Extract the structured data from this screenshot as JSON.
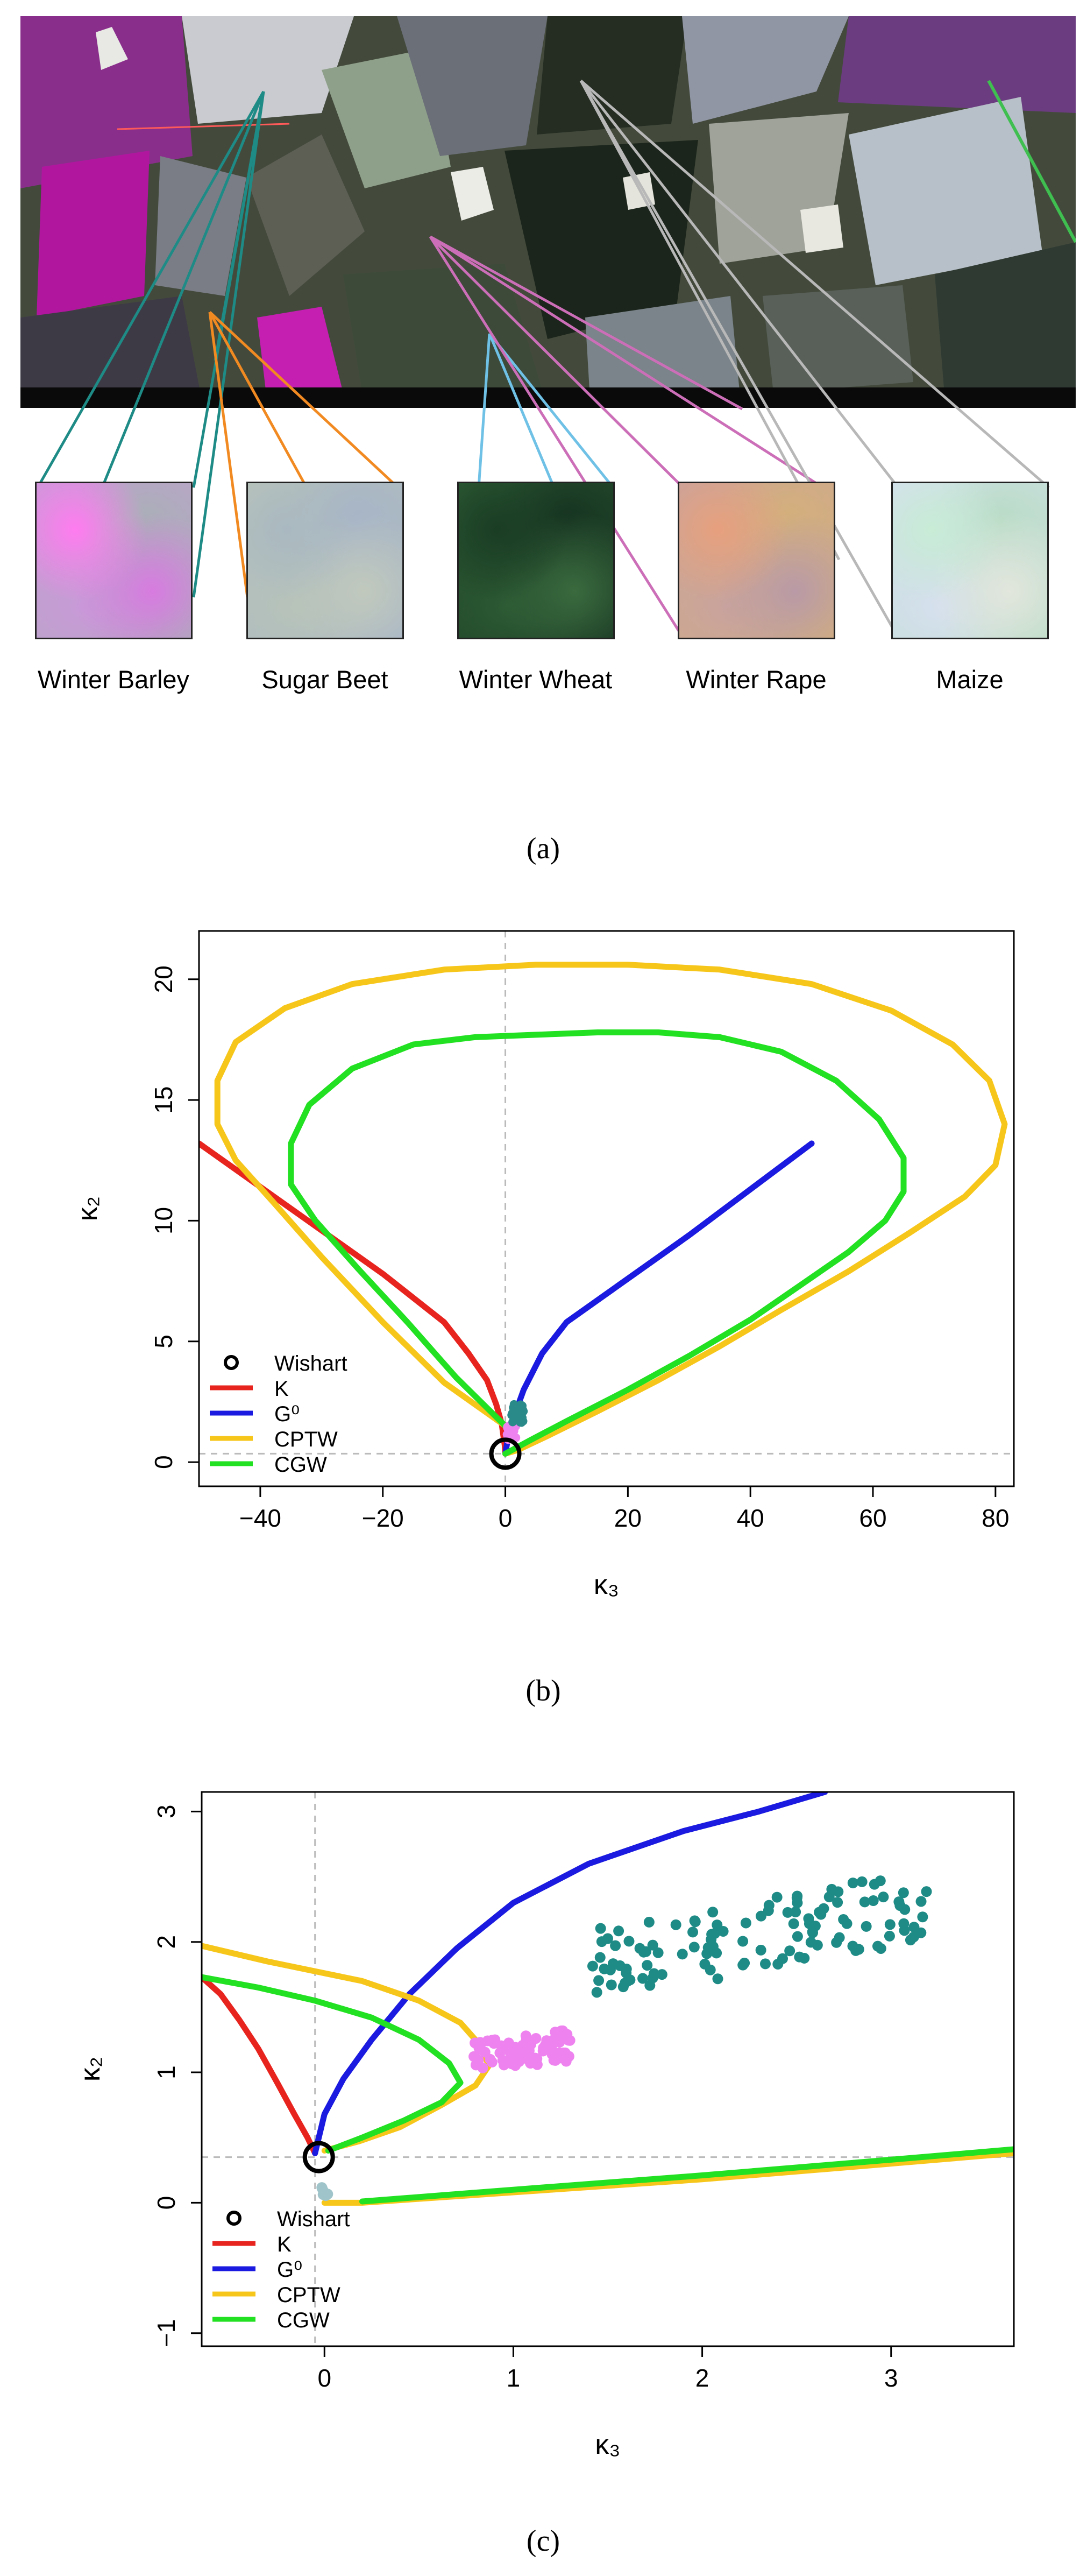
{
  "panel_a": {
    "caption": "(a)",
    "crops": [
      {
        "name": "Winter Barley",
        "color": "#1e8b86",
        "patch_colors": [
          "#ff7cf0",
          "#c99ad8",
          "#a9b0b7",
          "#d77be0"
        ]
      },
      {
        "name": "Sugar Beet",
        "color": "#f28a22",
        "patch_colors": [
          "#aab9c1",
          "#b7c3b9",
          "#a6b4c8",
          "#c1c9bd"
        ]
      },
      {
        "name": "Winter Wheat",
        "color": "#6fc1e6",
        "patch_colors": [
          "#1a3d24",
          "#2c5a33",
          "#163321",
          "#3a6a3e"
        ]
      },
      {
        "name": "Winter Rape",
        "color": "#cc6fb8",
        "patch_colors": [
          "#e7a07e",
          "#c9a39d",
          "#d4b07a",
          "#b99aa6"
        ]
      },
      {
        "name": "Maize",
        "color": "#b8b8b8",
        "patch_colors": [
          "#c8ecd6",
          "#d6e0ef",
          "#b9dcc6",
          "#e2e6dc"
        ]
      }
    ]
  },
  "chart_data": [
    {
      "type": "line",
      "caption": "(b)",
      "xlabel": "κ₃",
      "ylabel": "κ₂",
      "xlim": [
        -50,
        83
      ],
      "ylim": [
        -1,
        22
      ],
      "xticks": [
        -40,
        -20,
        0,
        20,
        40,
        60,
        80
      ],
      "yticks": [
        0,
        5,
        10,
        15,
        20
      ],
      "reference_lines": {
        "x": 0,
        "y": 0.35,
        "style": "dashed",
        "color": "#bbbbbb"
      },
      "legend_position": "bottom-left",
      "legend": [
        {
          "name": "Wishart",
          "color": "#000000",
          "kind": "circle"
        },
        {
          "name": "K",
          "color": "#e8241f",
          "kind": "line"
        },
        {
          "name": "G⁰",
          "color": "#1a1ae0",
          "kind": "line"
        },
        {
          "name": "CPTW",
          "color": "#f7c61a",
          "kind": "line"
        },
        {
          "name": "CGW",
          "color": "#22e022",
          "kind": "line"
        }
      ],
      "wishart_point": [
        0,
        0.35
      ],
      "series": [
        {
          "name": "K",
          "color": "#e8241f",
          "points": [
            [
              -50,
              13.2
            ],
            [
              -40,
              11.4
            ],
            [
              -30,
              9.6
            ],
            [
              -20,
              7.8
            ],
            [
              -10,
              5.8
            ],
            [
              -6,
              4.5
            ],
            [
              -3,
              3.4
            ],
            [
              -1.5,
              2.4
            ],
            [
              -0.6,
              1.6
            ],
            [
              -0.1,
              0.7
            ],
            [
              0,
              0.35
            ]
          ]
        },
        {
          "name": "G⁰",
          "color": "#1a1ae0",
          "points": [
            [
              0,
              0.35
            ],
            [
              0.3,
              0.8
            ],
            [
              1,
              1.6
            ],
            [
              3,
              3
            ],
            [
              6,
              4.5
            ],
            [
              10,
              5.8
            ],
            [
              20,
              7.6
            ],
            [
              30,
              9.4
            ],
            [
              40,
              11.3
            ],
            [
              50,
              13.2
            ]
          ]
        },
        {
          "name": "CPTW",
          "color": "#f7c61a",
          "points": [
            [
              0,
              1.5
            ],
            [
              -10,
              3.3
            ],
            [
              -20,
              5.8
            ],
            [
              -30,
              8.5
            ],
            [
              -38,
              10.8
            ],
            [
              -44,
              12.5
            ],
            [
              -47,
              14
            ],
            [
              -47,
              15.8
            ],
            [
              -44,
              17.4
            ],
            [
              -36,
              18.8
            ],
            [
              -25,
              19.8
            ],
            [
              -10,
              20.4
            ],
            [
              5,
              20.6
            ],
            [
              20,
              20.6
            ],
            [
              35,
              20.4
            ],
            [
              50,
              19.8
            ],
            [
              63,
              18.7
            ],
            [
              73,
              17.3
            ],
            [
              79,
              15.8
            ],
            [
              81.5,
              14
            ],
            [
              80,
              12.3
            ],
            [
              75,
              11
            ],
            [
              66,
              9.5
            ],
            [
              56,
              7.9
            ],
            [
              45,
              6.3
            ],
            [
              35,
              4.8
            ],
            [
              25,
              3.4
            ],
            [
              15,
              2.1
            ],
            [
              7,
              1.1
            ],
            [
              2,
              0.5
            ],
            [
              0,
              0.35
            ]
          ]
        },
        {
          "name": "CGW",
          "color": "#22e022",
          "points": [
            [
              0,
              1.5
            ],
            [
              -8,
              3.5
            ],
            [
              -16,
              5.8
            ],
            [
              -24,
              8
            ],
            [
              -31,
              10
            ],
            [
              -35,
              11.5
            ],
            [
              -35,
              13.2
            ],
            [
              -32,
              14.8
            ],
            [
              -25,
              16.3
            ],
            [
              -15,
              17.3
            ],
            [
              -5,
              17.6
            ],
            [
              5,
              17.7
            ],
            [
              15,
              17.8
            ],
            [
              25,
              17.8
            ],
            [
              35,
              17.6
            ],
            [
              45,
              17
            ],
            [
              54,
              15.8
            ],
            [
              61,
              14.2
            ],
            [
              65,
              12.6
            ],
            [
              65,
              11.2
            ],
            [
              62,
              10
            ],
            [
              56,
              8.7
            ],
            [
              48,
              7.3
            ],
            [
              40,
              5.9
            ],
            [
              30,
              4.4
            ],
            [
              20,
              3
            ],
            [
              10,
              1.7
            ],
            [
              4,
              0.9
            ],
            [
              0,
              0.35
            ]
          ]
        }
      ],
      "scatter": [
        {
          "color": "#ee82ee",
          "center": [
            1,
            1.2
          ],
          "spread": [
            0.8,
            0.3
          ],
          "count": 30
        },
        {
          "color": "#2a8a8a",
          "center": [
            2,
            2
          ],
          "spread": [
            1,
            0.4
          ],
          "count": 30
        }
      ]
    },
    {
      "type": "line",
      "caption": "(c)",
      "xlabel": "κ₃",
      "ylabel": "κ₂",
      "xlim": [
        -0.65,
        3.65
      ],
      "ylim": [
        -1.1,
        3.15
      ],
      "xticks": [
        0,
        1,
        2,
        3
      ],
      "yticks": [
        -1,
        0,
        1,
        2,
        3
      ],
      "reference_lines": {
        "x": -0.05,
        "y": 0.35,
        "style": "dashed",
        "color": "#bbbbbb"
      },
      "legend_position": "bottom-left",
      "legend": [
        {
          "name": "Wishart",
          "color": "#000000",
          "kind": "circle"
        },
        {
          "name": "K",
          "color": "#e8241f",
          "kind": "line"
        },
        {
          "name": "G⁰",
          "color": "#1a1ae0",
          "kind": "line"
        },
        {
          "name": "CPTW",
          "color": "#f7c61a",
          "kind": "line"
        },
        {
          "name": "CGW",
          "color": "#22e022",
          "kind": "line"
        }
      ],
      "wishart_point": [
        -0.03,
        0.35
      ],
      "series": [
        {
          "name": "K",
          "color": "#e8241f",
          "points": [
            [
              -0.65,
              1.73
            ],
            [
              -0.55,
              1.6
            ],
            [
              -0.45,
              1.4
            ],
            [
              -0.35,
              1.18
            ],
            [
              -0.25,
              0.92
            ],
            [
              -0.16,
              0.68
            ],
            [
              -0.09,
              0.5
            ],
            [
              -0.05,
              0.38
            ]
          ]
        },
        {
          "name": "G⁰",
          "color": "#1a1ae0",
          "points": [
            [
              -0.05,
              0.38
            ],
            [
              0,
              0.68
            ],
            [
              0.1,
              0.95
            ],
            [
              0.25,
              1.25
            ],
            [
              0.45,
              1.6
            ],
            [
              0.7,
              1.95
            ],
            [
              1,
              2.3
            ],
            [
              1.4,
              2.6
            ],
            [
              1.9,
              2.85
            ],
            [
              2.3,
              3
            ],
            [
              2.65,
              3.15
            ]
          ]
        },
        {
          "name": "CPTW",
          "color": "#f7c61a",
          "points": [
            [
              -0.65,
              1.97
            ],
            [
              -0.3,
              1.85
            ],
            [
              0.2,
              1.7
            ],
            [
              0.5,
              1.55
            ],
            [
              0.72,
              1.38
            ],
            [
              0.83,
              1.2
            ],
            [
              0.87,
              1.05
            ],
            [
              0.8,
              0.9
            ],
            [
              0.62,
              0.75
            ],
            [
              0.4,
              0.58
            ],
            [
              0.18,
              0.47
            ],
            [
              0,
              0.4
            ]
          ]
        },
        {
          "name": "CGW",
          "color": "#22e022",
          "points": [
            [
              -0.65,
              1.73
            ],
            [
              -0.35,
              1.65
            ],
            [
              -0.05,
              1.55
            ],
            [
              0.25,
              1.42
            ],
            [
              0.5,
              1.25
            ],
            [
              0.66,
              1.07
            ],
            [
              0.72,
              0.92
            ],
            [
              0.62,
              0.77
            ],
            [
              0.42,
              0.63
            ],
            [
              0.2,
              0.5
            ],
            [
              0.02,
              0.4
            ]
          ]
        },
        {
          "name": "CPTW-lower",
          "color": "#f7c61a",
          "points": [
            [
              0,
              0
            ],
            [
              0.2,
              0
            ],
            [
              1,
              0.08
            ],
            [
              2,
              0.18
            ],
            [
              3,
              0.3
            ],
            [
              3.65,
              0.38
            ]
          ]
        },
        {
          "name": "CGW-lower",
          "color": "#22e022",
          "points": [
            [
              0.2,
              0.01
            ],
            [
              1,
              0.1
            ],
            [
              2,
              0.21
            ],
            [
              3,
              0.33
            ],
            [
              3.65,
              0.41
            ]
          ]
        }
      ],
      "scatter": [
        {
          "color": "#ee82ee",
          "center": [
            1.05,
            1.16
          ],
          "spread": [
            0.26,
            0.12
          ],
          "count": 80
        },
        {
          "color": "#1e8b86",
          "center": [
            2.3,
            2.05
          ],
          "spread": [
            0.9,
            0.28
          ],
          "count": 120
        },
        {
          "color": "#9fc4c9",
          "center": [
            0,
            0.08
          ],
          "spread": [
            0.02,
            0.05
          ],
          "count": 6
        }
      ]
    }
  ]
}
